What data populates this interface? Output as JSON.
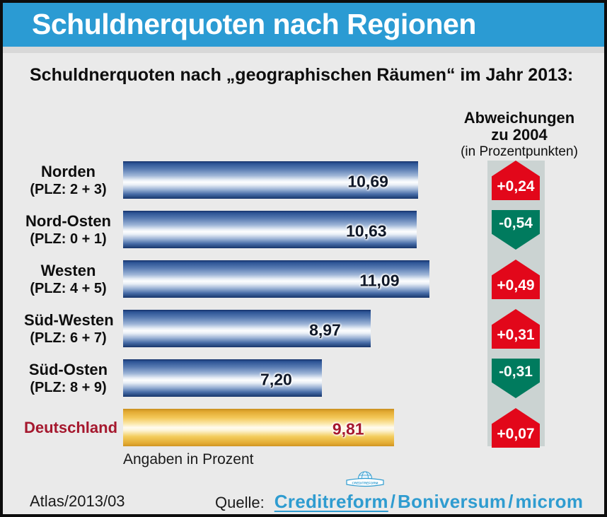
{
  "header": {
    "title": "Schuldnerquoten nach Regionen"
  },
  "subtitle": "Schuldnerquoten nach „geographischen Räumen“ im Jahr 2013:",
  "deviation_header": {
    "line1": "Abweichungen",
    "line2": "zu 2004",
    "line3": "(in Prozentpunkten)"
  },
  "footnote": "Angaben in Prozent",
  "footer": {
    "edition": "Atlas/2013/03",
    "source_label": "Quelle:",
    "brand_separator": "/",
    "brands": [
      {
        "text": "Creditreform",
        "underline": true
      },
      {
        "text": "Boniversum",
        "underline": false
      },
      {
        "text": "microm",
        "underline": false
      }
    ],
    "logo_name": "creditreform-globe-logo"
  },
  "colors": {
    "header_blue": "#2b9bd3",
    "positive_red": "#e2071a",
    "negative_green": "#007b5e",
    "strip_gray": "#cbd3d2",
    "germany_red": "#a5182e",
    "brand_blue": "#2f9cd0"
  },
  "chart_data": {
    "type": "bar",
    "orientation": "horizontal",
    "title": "Schuldnerquoten nach „geographischen Räumen“ im Jahr 2013:",
    "unit": "Prozent",
    "value_axis_range": [
      0,
      11.5
    ],
    "deviation_column_title": "Abweichungen zu 2004 (in Prozentpunkten)",
    "rows": [
      {
        "label": "Norden",
        "sublabel": "(PLZ: 2 + 3)",
        "value": 10.69,
        "value_label": "10,69",
        "deviation": 0.24,
        "deviation_label": "+0,24",
        "direction": "up",
        "bar_style": "blue",
        "label_style": "black"
      },
      {
        "label": "Nord-Osten",
        "sublabel": "(PLZ: 0 + 1)",
        "value": 10.63,
        "value_label": "10,63",
        "deviation": -0.54,
        "deviation_label": "-0,54",
        "direction": "down",
        "bar_style": "blue",
        "label_style": "black"
      },
      {
        "label": "Westen",
        "sublabel": "(PLZ: 4 + 5)",
        "value": 11.09,
        "value_label": "11,09",
        "deviation": 0.49,
        "deviation_label": "+0,49",
        "direction": "up",
        "bar_style": "blue",
        "label_style": "black"
      },
      {
        "label": "Süd-Westen",
        "sublabel": "(PLZ: 6 + 7)",
        "value": 8.97,
        "value_label": "8,97",
        "deviation": 0.31,
        "deviation_label": "+0,31",
        "direction": "up",
        "bar_style": "blue",
        "label_style": "black"
      },
      {
        "label": "Süd-Osten",
        "sublabel": "(PLZ: 8 + 9)",
        "value": 7.2,
        "value_label": "7,20",
        "deviation": -0.31,
        "deviation_label": "-0,31",
        "direction": "down",
        "bar_style": "blue",
        "label_style": "black"
      },
      {
        "label": "Deutschland",
        "sublabel": "",
        "value": 9.81,
        "value_label": "9,81",
        "deviation": 0.07,
        "deviation_label": "+0,07",
        "direction": "up",
        "bar_style": "gold",
        "label_style": "red"
      }
    ]
  }
}
